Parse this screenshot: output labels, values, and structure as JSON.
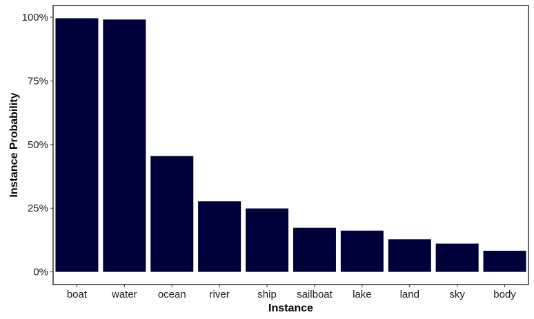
{
  "chart_data": {
    "type": "bar",
    "title": "",
    "xlabel": "Instance",
    "ylabel": "Instance Probability",
    "categories": [
      "boat",
      "water",
      "ocean",
      "river",
      "ship",
      "sailboat",
      "lake",
      "land",
      "sky",
      "body"
    ],
    "values": [
      99.6,
      99.1,
      45.5,
      27.7,
      24.9,
      17.3,
      16.2,
      12.8,
      11.1,
      8.3
    ],
    "ylim": [
      -4.98,
      104.6
    ],
    "yticks": [
      0,
      25,
      50,
      75,
      100
    ],
    "ytick_labels": [
      "0%",
      "25%",
      "50%",
      "75%",
      "100%"
    ],
    "grid": false,
    "legend": "none",
    "bar_color": "#00003a"
  }
}
